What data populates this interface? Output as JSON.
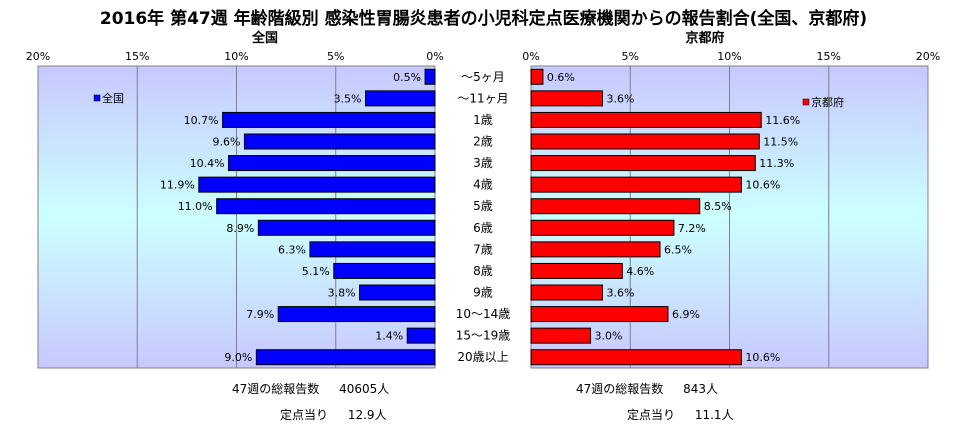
{
  "title": "2016年 第47週 年齢階級別 感染性胃腸炎患者の小児科定点医療機関からの報告割合(全国、京都府)",
  "chart_data": [
    {
      "type": "bar",
      "orientation": "horizontal",
      "direction": "right-to-left",
      "title": "全国",
      "legend": "全国",
      "legend_position": "top-left",
      "color": "#0000ff",
      "categories": [
        "～5ヶ月",
        "～11ヶ月",
        "1歳",
        "2歳",
        "3歳",
        "4歳",
        "5歳",
        "6歳",
        "7歳",
        "8歳",
        "9歳",
        "10～14歳",
        "15～19歳",
        "20歳以上"
      ],
      "values": [
        0.5,
        3.5,
        10.7,
        9.6,
        10.4,
        11.9,
        11.0,
        8.9,
        6.3,
        5.1,
        3.8,
        7.9,
        1.4,
        9.0
      ],
      "value_labels": [
        "0.5%",
        "3.5%",
        "10.7%",
        "9.6%",
        "10.4%",
        "11.9%",
        "11.0%",
        "8.9%",
        "6.3%",
        "5.1%",
        "3.8%",
        "7.9%",
        "1.4%",
        "9.0%"
      ],
      "xlim": [
        0,
        20
      ],
      "x_ticks": [
        "20%",
        "15%",
        "10%",
        "5%",
        "0%"
      ],
      "grid": true
    },
    {
      "type": "bar",
      "orientation": "horizontal",
      "direction": "left-to-right",
      "title": "京都府",
      "legend": "京都府",
      "legend_position": "top-right",
      "color": "#ff0000",
      "categories": [
        "～5ヶ月",
        "～11ヶ月",
        "1歳",
        "2歳",
        "3歳",
        "4歳",
        "5歳",
        "6歳",
        "7歳",
        "8歳",
        "9歳",
        "10～14歳",
        "15～19歳",
        "20歳以上"
      ],
      "values": [
        0.6,
        3.6,
        11.6,
        11.5,
        11.3,
        10.6,
        8.5,
        7.2,
        6.5,
        4.6,
        3.6,
        6.9,
        3.0,
        10.6
      ],
      "value_labels": [
        "0.6%",
        "3.6%",
        "11.6%",
        "11.5%",
        "11.3%",
        "10.6%",
        "8.5%",
        "7.2%",
        "6.5%",
        "4.6%",
        "3.6%",
        "6.9%",
        "3.0%",
        "10.6%"
      ],
      "xlim": [
        0,
        20
      ],
      "x_ticks": [
        "0%",
        "5%",
        "10%",
        "15%",
        "20%"
      ],
      "grid": true
    }
  ],
  "footer": {
    "national_total_label": "47週の総報告数",
    "national_total_value": "40605人",
    "national_per_label": "定点当り",
    "national_per_value": "12.9人",
    "kyoto_total_label": "47週の総報告数",
    "kyoto_total_value": "843人",
    "kyoto_per_label": "定点当り",
    "kyoto_per_value": "11.1人"
  }
}
